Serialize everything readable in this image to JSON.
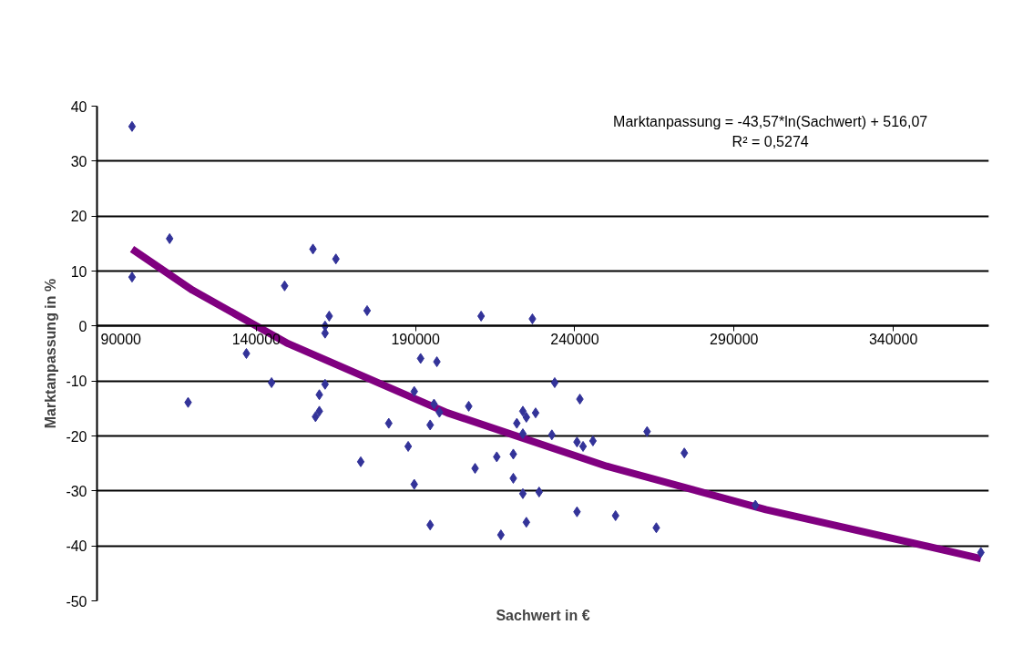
{
  "chart_data": {
    "type": "scatter",
    "xlabel": "Sachwert in €",
    "ylabel": "Marktanpassung in %",
    "xlim": [
      90000,
      370000
    ],
    "xticks": [
      90000,
      140000,
      190000,
      240000,
      290000,
      340000
    ],
    "ylim": [
      -50,
      40
    ],
    "yticks": [
      -50,
      -40,
      -30,
      -20,
      -10,
      0,
      10,
      20,
      30,
      40
    ],
    "grid": "y",
    "annotations": [
      "Marktanpassung = -43,57*ln(Sachwert) + 516,07",
      "R² = 0,5274"
    ],
    "series": [
      {
        "type": "scatter",
        "color": "#333399",
        "marker": "diamond",
        "x": [
          101000,
          101000,
          112800,
          118600,
          136900,
          148900,
          157800,
          165000,
          162900,
          161600,
          161600,
          174800,
          144800,
          161600,
          159800,
          159800,
          158600,
          181600,
          172800,
          210600,
          226700,
          191600,
          196700,
          189600,
          195800,
          197500,
          194600,
          206700,
          187700,
          189600,
          194600,
          208700,
          215500,
          220700,
          220700,
          223700,
          228800,
          224800,
          216800,
          221800,
          223700,
          224800,
          227700,
          223700,
          232800,
          233700,
          241600,
          240700,
          242600,
          245700,
          240700,
          252800,
          262700,
          265600,
          274400,
          296700,
          367500
        ],
        "values": [
          36.3,
          8.9,
          15.9,
          -13.9,
          -5.0,
          7.3,
          14.0,
          12.2,
          1.8,
          0.0,
          -1.3,
          2.8,
          -10.3,
          -10.6,
          -12.5,
          -15.5,
          -16.5,
          -17.7,
          -24.7,
          1.8,
          1.3,
          -5.9,
          -6.5,
          -11.9,
          -14.2,
          -15.7,
          -18.0,
          -14.6,
          -21.9,
          -28.8,
          -36.2,
          -25.9,
          -23.8,
          -23.3,
          -27.7,
          -30.5,
          -30.2,
          -35.7,
          -38.0,
          -17.7,
          -15.5,
          -16.6,
          -15.8,
          -19.6,
          -19.8,
          -10.3,
          -13.3,
          -21.1,
          -21.9,
          -20.9,
          -33.8,
          -34.5,
          -19.2,
          -36.7,
          -23.1,
          -32.6,
          -41.2
        ]
      },
      {
        "type": "line",
        "color": "#800080",
        "marker": "none",
        "x": [
          101000,
          120000,
          150000,
          200000,
          250000,
          300000,
          367500
        ],
        "values": [
          14.0,
          6.5,
          -3.2,
          -15.8,
          -25.5,
          -33.4,
          -42.3
        ]
      }
    ]
  }
}
